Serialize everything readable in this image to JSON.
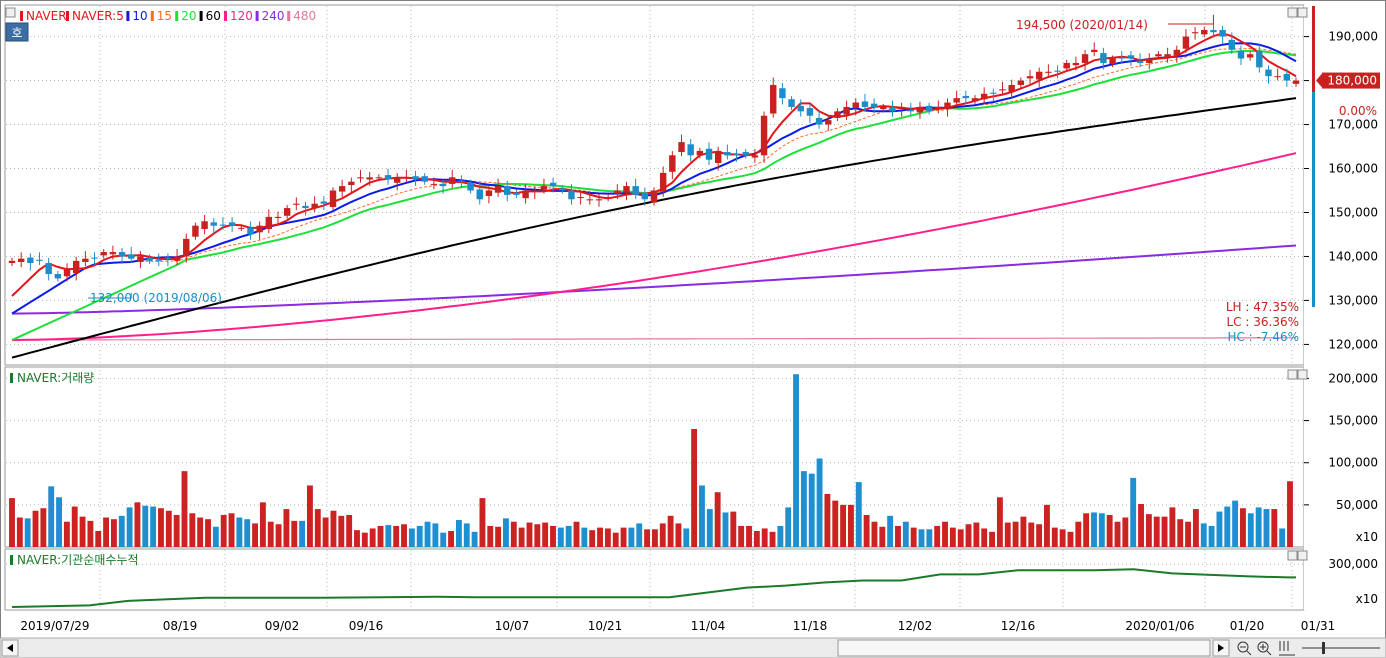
{
  "colors": {
    "up": "#c8211f",
    "down": "#1b8ec9",
    "ma5": "#e5141a",
    "ma10": "#0b1be8",
    "ma15": "#ff6a2a",
    "ma20": "#1ee03a",
    "ma60": "#000000",
    "ma120": "#ff1f8c",
    "ma240": "#8a2be2",
    "ma480": "#e07aa0",
    "volume_up": "#cc2222",
    "volume_down": "#1f8fcf",
    "institution": "#1a7a2a",
    "grid": "#b8b8b8"
  },
  "price_panel": {
    "legend": [
      {
        "label": "NAVER",
        "color": "#e5141a"
      },
      {
        "label": "NAVER:5",
        "color": "#e5141a"
      },
      {
        "label": "10",
        "color": "#0b1be8"
      },
      {
        "label": "15",
        "color": "#ff6a2a"
      },
      {
        "label": "20",
        "color": "#1ee03a"
      },
      {
        "label": "60",
        "color": "#000000"
      },
      {
        "label": "120",
        "color": "#ff1f8c"
      },
      {
        "label": "240",
        "color": "#8a2be2"
      },
      {
        "label": "480",
        "color": "#e07aa0"
      }
    ],
    "ho_button": "호",
    "high_annotation": "194,500 (2020/01/14)",
    "low_annotation": "132,000 (2019/08/06)",
    "current_price": "180,000",
    "current_change": "0.00%",
    "stats": [
      {
        "label": "LH : 47.35%",
        "color": "#c8211f"
      },
      {
        "label": "LC : 36.36%",
        "color": "#c8211f"
      },
      {
        "label": "HC : -7.46%",
        "color": "#1b8ec9"
      }
    ],
    "y_ticks": [
      "190,000",
      "180,000",
      "170,000",
      "160,000",
      "150,000",
      "140,000",
      "130,000",
      "120,000"
    ]
  },
  "volume_panel": {
    "title": "NAVER:거래량",
    "y_ticks": [
      "200,000",
      "150,000",
      "100,000",
      "50,000"
    ],
    "unit": "x10"
  },
  "institution_panel": {
    "title": "NAVER:기관순매수누적",
    "y_ticks": [
      "300,000"
    ],
    "unit": "x10"
  },
  "x_axis": {
    "labels": [
      "2019/07/29",
      "08/19",
      "09/02",
      "09/16",
      "10/07",
      "10/21",
      "11/04",
      "11/18",
      "12/02",
      "12/16",
      "2020/01/06",
      "01/20",
      "01/31"
    ]
  },
  "chart_data": [
    {
      "type": "candlestick",
      "series_name": "NAVER",
      "ylim": [
        116000,
        196500
      ],
      "first_date": "2019/07/29",
      "last_date": "2020/01/31",
      "high": {
        "value": 194500,
        "date": "2020/01/14"
      },
      "low": {
        "value": 132000,
        "date": "2019/08/06"
      },
      "last_close": 180000,
      "close": [
        139000,
        139500,
        138500,
        139000,
        136000,
        135000,
        137000,
        139000,
        139500,
        139500,
        141000,
        141000,
        140000,
        139500,
        140000,
        139000,
        139000,
        139500,
        140000,
        144000,
        147000,
        148000,
        147000,
        147000,
        147000,
        146500,
        145000,
        147000,
        149000,
        149000,
        151000,
        152000,
        151000,
        152000,
        152000,
        155000,
        156000,
        157000,
        158000,
        158000,
        158000,
        157500,
        158000,
        158000,
        157500,
        157000,
        156500,
        156000,
        158000,
        157000,
        155000,
        153000,
        155000,
        156000,
        154000,
        154000,
        155000,
        155000,
        156000,
        156000,
        155000,
        153000,
        153500,
        153000,
        153000,
        153500,
        155000,
        156000,
        154000,
        153000,
        155000,
        159000,
        163000,
        166000,
        163000,
        164000,
        162000,
        164000,
        163000,
        163000,
        163000,
        163000,
        172000,
        179000,
        176000,
        174000,
        173000,
        172000,
        170000,
        171000,
        173000,
        174000,
        175000,
        174000,
        174000,
        174000,
        173000,
        174000,
        173000,
        174000,
        173000,
        174000,
        175000,
        176000,
        176000,
        176000,
        177000,
        177000,
        178000,
        179000,
        180000,
        181000,
        182000,
        182000,
        182000,
        184000,
        184000,
        186000,
        187000,
        184000,
        185000,
        185000,
        185000,
        184000,
        185000,
        186000,
        186000,
        187000,
        190000,
        191000,
        191500,
        191000,
        190000,
        187000,
        185000,
        186000,
        183000,
        181000,
        181000,
        180000,
        180000
      ],
      "ma5_last": 179500,
      "ma10_last": 184000,
      "ma20_last": 185000,
      "ma60_last": 176000,
      "ma120_last": 163500,
      "ma240_last": 142500,
      "ma480_last": 121500
    },
    {
      "type": "bar",
      "series_name": "NAVER:거래량",
      "unit_multiplier": 10,
      "ylim": [
        0,
        210000
      ],
      "values": [
        58000,
        35000,
        34000,
        43000,
        46000,
        72000,
        59000,
        30000,
        48000,
        36000,
        31000,
        19000,
        35000,
        33000,
        37000,
        47000,
        53000,
        49000,
        48000,
        46000,
        43000,
        38000,
        90000,
        40000,
        35000,
        33000,
        24000,
        38000,
        40000,
        35000,
        33000,
        28000,
        53000,
        30000,
        27000,
        45000,
        31000,
        31000,
        73000,
        45000,
        35000,
        43000,
        37000,
        38000,
        20000,
        17000,
        22000,
        25000,
        26000,
        25000,
        27000,
        22000,
        25000,
        30000,
        28000,
        17000,
        19000,
        32000,
        28000,
        18000,
        58000,
        25000,
        24000,
        34000,
        30000,
        23000,
        29000,
        27000,
        29000,
        25000,
        23000,
        25000,
        30000,
        23000,
        20000,
        23000,
        22000,
        17000,
        23000,
        23000,
        28000,
        21000,
        21000,
        28000,
        37000,
        28000,
        22000,
        140000,
        73000,
        45000,
        65000,
        41000,
        42000,
        25000,
        25000,
        19000,
        22000,
        18000,
        25000,
        47000,
        205000,
        90000,
        87000,
        105000,
        63000,
        55000,
        50000,
        50000,
        77000,
        38000,
        30000,
        24000,
        37000,
        25000,
        30000,
        23000,
        21000,
        21000,
        25000,
        30000,
        23000,
        21000,
        27000,
        29000,
        22000,
        18000,
        59000,
        29000,
        30000,
        36000,
        29000,
        27000,
        50000,
        23000,
        21000,
        18000,
        30000,
        40000,
        41000,
        40000,
        38000,
        30000,
        35000,
        82000,
        51000,
        39000,
        36000,
        36000,
        47000,
        33000,
        30000,
        45000,
        28000,
        25000,
        42000,
        48000,
        55000,
        46000,
        40000,
        47000,
        45000,
        45000,
        22000,
        78000
      ]
    },
    {
      "type": "line",
      "series_name": "NAVER:기관순매수누적",
      "unit_multiplier": 10,
      "ylim": [
        -140000,
        420000
      ],
      "x": [
        0,
        10,
        15,
        25,
        40,
        55,
        60,
        75,
        85,
        95,
        100,
        105,
        110,
        115,
        120,
        125,
        130,
        140,
        145,
        150,
        160,
        165,
        166
      ],
      "values": [
        -120000,
        -105000,
        -60000,
        -30000,
        -30000,
        -20000,
        -25000,
        -25000,
        -25000,
        70000,
        90000,
        120000,
        140000,
        140000,
        200000,
        200000,
        240000,
        240000,
        250000,
        210000,
        180000,
        170000,
        170000
      ]
    }
  ]
}
